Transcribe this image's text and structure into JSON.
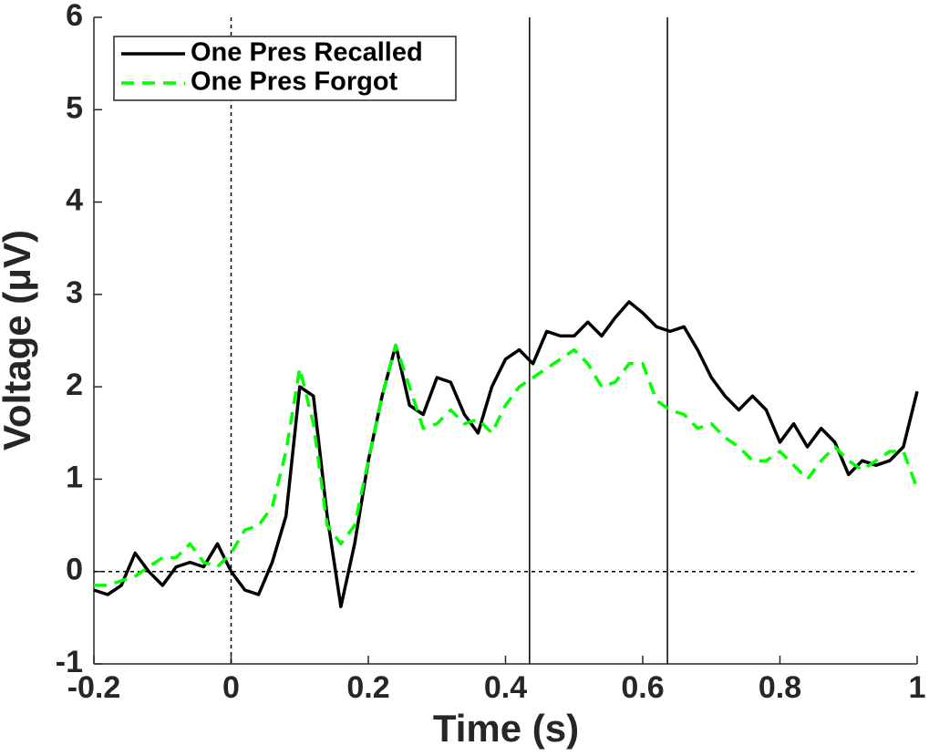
{
  "chart_data": {
    "type": "line",
    "xlabel": "Time (s)",
    "ylabel": "Voltage (μV)",
    "x": [
      -0.2,
      -0.18,
      -0.16,
      -0.14,
      -0.12,
      -0.1,
      -0.08,
      -0.06,
      -0.04,
      -0.02,
      0,
      0.02,
      0.04,
      0.06,
      0.08,
      0.1,
      0.12,
      0.14,
      0.16,
      0.18,
      0.2,
      0.22,
      0.24,
      0.26,
      0.28,
      0.3,
      0.32,
      0.34,
      0.36,
      0.38,
      0.4,
      0.42,
      0.44,
      0.46,
      0.48,
      0.5,
      0.52,
      0.54,
      0.56,
      0.58,
      0.6,
      0.62,
      0.64,
      0.66,
      0.68,
      0.7,
      0.72,
      0.74,
      0.76,
      0.78,
      0.8,
      0.82,
      0.84,
      0.86,
      0.88,
      0.9,
      0.92,
      0.94,
      0.96,
      0.98,
      1
    ],
    "series": [
      {
        "name": "One Pres Recalled",
        "color": "#000000",
        "dash": false,
        "values": [
          -0.2,
          -0.25,
          -0.15,
          0.2,
          0,
          -0.15,
          0.05,
          0.1,
          0.05,
          0.3,
          0,
          -0.2,
          -0.25,
          0.1,
          0.6,
          2,
          1.9,
          0.6,
          -0.38,
          0.3,
          1.2,
          1.9,
          2.45,
          1.8,
          1.7,
          2.1,
          2.05,
          1.7,
          1.5,
          2,
          2.3,
          2.4,
          2.25,
          2.6,
          2.55,
          2.55,
          2.7,
          2.55,
          2.75,
          2.92,
          2.8,
          2.65,
          2.6,
          2.65,
          2.4,
          2.1,
          1.9,
          1.75,
          1.9,
          1.75,
          1.4,
          1.6,
          1.35,
          1.55,
          1.4,
          1.05,
          1.2,
          1.15,
          1.2,
          1.35,
          1.95
        ]
      },
      {
        "name": "One Pres Forgot",
        "color": "#00ff00",
        "dash": true,
        "values": [
          -0.15,
          -0.15,
          -0.1,
          -0.05,
          0.05,
          0.15,
          0.15,
          0.3,
          0.1,
          0.05,
          0.2,
          0.45,
          0.5,
          0.7,
          1.3,
          2.2,
          1.6,
          0.5,
          0.3,
          0.5,
          1.2,
          1.9,
          2.45,
          2,
          1.55,
          1.6,
          1.75,
          1.6,
          1.65,
          1.5,
          1.8,
          2,
          2.1,
          2.2,
          2.3,
          2.4,
          2.25,
          2,
          2.05,
          2.25,
          2.25,
          1.85,
          1.75,
          1.7,
          1.55,
          1.6,
          1.45,
          1.35,
          1.2,
          1.2,
          1.3,
          1.15,
          1,
          1.2,
          1.35,
          1.2,
          1.1,
          1.2,
          1.3,
          1.3,
          0.9
        ]
      }
    ],
    "vlines": [
      0.435,
      0.636
    ],
    "ref_x": 0,
    "ref_y": 0,
    "xlim": [
      -0.2,
      1
    ],
    "ylim": [
      -1,
      6
    ],
    "xticks": [
      -0.2,
      0,
      0.2,
      0.4,
      0.6,
      0.8,
      1
    ],
    "yticks": [
      -1,
      0,
      1,
      2,
      3,
      4,
      5,
      6
    ],
    "legend": "upper left"
  }
}
